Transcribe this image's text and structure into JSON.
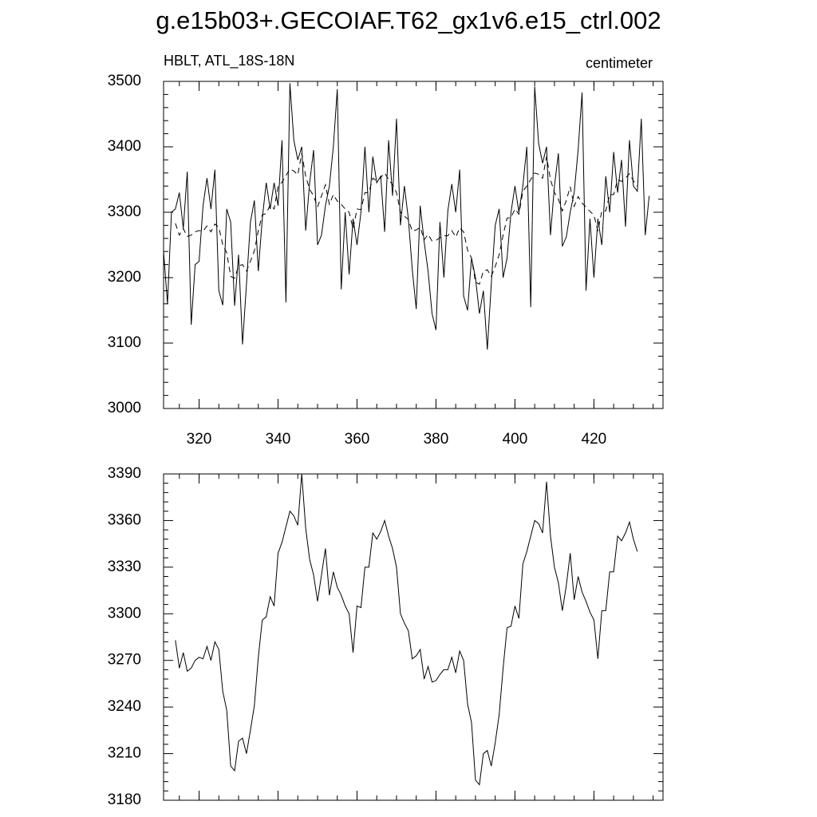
{
  "chart_data": [
    {
      "type": "line",
      "title": "g.e15b03+.GECOIAF.T62_gx1v6.e15_ctrl.002",
      "subtitle": "HBLT, ATL_18S-18N",
      "units": "centimeter",
      "xlim": [
        311,
        437.5
      ],
      "xticks": [
        320,
        340,
        360,
        380,
        400,
        420
      ],
      "ylim": [
        3000,
        3500
      ],
      "yticks": [
        3000,
        3100,
        3200,
        3300,
        3400,
        3500
      ],
      "series": [
        {
          "style": "solid",
          "color": "#000000",
          "x": [
            311,
            312,
            313,
            314,
            315,
            316,
            317,
            318,
            319,
            320,
            321,
            322,
            323,
            324,
            325,
            326,
            327,
            328,
            329,
            330,
            331,
            332,
            333,
            334,
            335,
            336,
            337,
            338,
            339,
            340,
            341,
            342,
            343,
            344,
            345,
            346,
            347,
            348,
            349,
            350,
            351,
            352,
            353,
            354,
            355,
            356,
            357,
            358,
            359,
            360,
            361,
            362,
            363,
            364,
            365,
            366,
            367,
            368,
            369,
            370,
            371,
            372,
            373,
            374,
            375,
            376,
            377,
            378,
            379,
            380,
            381,
            382,
            383,
            384,
            385,
            386,
            387,
            388,
            389,
            390,
            391,
            392,
            393,
            394,
            395,
            396,
            397,
            398,
            399,
            400,
            401,
            402,
            403,
            404,
            405,
            406,
            407,
            408,
            409,
            410,
            411,
            412,
            413,
            414,
            415,
            416,
            417,
            418,
            419,
            420,
            421,
            422,
            423,
            424,
            425,
            426,
            427,
            428,
            429,
            430,
            431,
            432,
            433,
            434
          ],
          "values": [
            3240,
            3160,
            3300,
            3305,
            3330,
            3275,
            3362,
            3128,
            3220,
            3225,
            3310,
            3352,
            3305,
            3365,
            3180,
            3158,
            3305,
            3285,
            3157,
            3235,
            3098,
            3190,
            3285,
            3318,
            3210,
            3290,
            3345,
            3305,
            3345,
            3310,
            3410,
            3162,
            3497,
            3410,
            3380,
            3400,
            3272,
            3345,
            3395,
            3250,
            3265,
            3310,
            3340,
            3400,
            3488,
            3182,
            3300,
            3205,
            3290,
            3250,
            3300,
            3400,
            3300,
            3385,
            3345,
            3355,
            3270,
            3410,
            3325,
            3443,
            3280,
            3340,
            3290,
            3212,
            3152,
            3310,
            3255,
            3210,
            3145,
            3120,
            3285,
            3200,
            3302,
            3343,
            3300,
            3365,
            3172,
            3150,
            3230,
            3200,
            3145,
            3180,
            3090,
            3190,
            3280,
            3305,
            3200,
            3230,
            3300,
            3340,
            3300,
            3340,
            3400,
            3155,
            3492,
            3405,
            3375,
            3400,
            3265,
            3340,
            3390,
            3248,
            3262,
            3300,
            3330,
            3395,
            3483,
            3180,
            3290,
            3200,
            3290,
            3250,
            3355,
            3300,
            3392,
            3330,
            3380,
            3278,
            3410,
            3340,
            3332,
            3443,
            3265,
            3325
          ]
        },
        {
          "style": "dashed",
          "color": "#000000",
          "x": [
            314,
            315,
            316,
            317,
            318,
            319,
            320,
            321,
            322,
            323,
            324,
            325,
            326,
            327,
            328,
            329,
            330,
            331,
            332,
            333,
            334,
            335,
            336,
            337,
            338,
            339,
            340,
            341,
            342,
            343,
            344,
            345,
            346,
            347,
            348,
            349,
            350,
            351,
            352,
            353,
            354,
            355,
            356,
            357,
            358,
            359,
            360,
            361,
            362,
            363,
            364,
            365,
            366,
            367,
            368,
            369,
            370,
            371,
            372,
            373,
            374,
            375,
            376,
            377,
            378,
            379,
            380,
            381,
            382,
            383,
            384,
            385,
            386,
            387,
            388,
            389,
            390,
            391,
            392,
            393,
            394,
            395,
            396,
            397,
            398,
            399,
            400,
            401,
            402,
            403,
            404,
            405,
            406,
            407,
            408,
            409,
            410,
            411,
            412,
            413,
            414,
            415,
            416,
            417,
            418,
            419,
            420,
            421,
            422,
            423,
            424,
            425,
            426,
            427,
            428,
            429,
            430,
            431
          ],
          "values": [
            3283,
            3265,
            3275,
            3263,
            3265,
            3270,
            3272,
            3271,
            3279,
            3270,
            3282,
            3277,
            3250,
            3238,
            3202,
            3199,
            3218,
            3220,
            3210,
            3225,
            3241,
            3272,
            3296,
            3298,
            3311,
            3305,
            3339,
            3346,
            3356,
            3366,
            3363,
            3357,
            3390,
            3355,
            3335,
            3325,
            3308,
            3325,
            3342,
            3312,
            3327,
            3317,
            3312,
            3305,
            3300,
            3275,
            3305,
            3304,
            3330,
            3330,
            3352,
            3348,
            3353,
            3360,
            3350,
            3342,
            3330,
            3300,
            3294,
            3289,
            3271,
            3273,
            3277,
            3258,
            3266,
            3256,
            3257,
            3261,
            3264,
            3264,
            3272,
            3262,
            3276,
            3270,
            3242,
            3230,
            3193,
            3190,
            3210,
            3212,
            3202,
            3217,
            3235,
            3265,
            3291,
            3292,
            3305,
            3297,
            3332,
            3340,
            3350,
            3360,
            3358,
            3352,
            3385,
            3350,
            3330,
            3320,
            3302,
            3318,
            3339,
            3309,
            3324,
            3314,
            3308,
            3301,
            3296,
            3271,
            3302,
            3302,
            3327,
            3327,
            3350,
            3347,
            3352,
            3359,
            3348,
            3340
          ]
        }
      ]
    },
    {
      "type": "line",
      "xlim": [
        311,
        437.5
      ],
      "xticks": [
        320,
        340,
        360,
        380,
        400,
        420
      ],
      "ylim": [
        3180,
        3390
      ],
      "yticks": [
        3180,
        3210,
        3240,
        3270,
        3300,
        3330,
        3360,
        3390
      ],
      "series": [
        {
          "style": "solid",
          "color": "#000000",
          "x": [
            314,
            315,
            316,
            317,
            318,
            319,
            320,
            321,
            322,
            323,
            324,
            325,
            326,
            327,
            328,
            329,
            330,
            331,
            332,
            333,
            334,
            335,
            336,
            337,
            338,
            339,
            340,
            341,
            342,
            343,
            344,
            345,
            346,
            347,
            348,
            349,
            350,
            351,
            352,
            353,
            354,
            355,
            356,
            357,
            358,
            359,
            360,
            361,
            362,
            363,
            364,
            365,
            366,
            367,
            368,
            369,
            370,
            371,
            372,
            373,
            374,
            375,
            376,
            377,
            378,
            379,
            380,
            381,
            382,
            383,
            384,
            385,
            386,
            387,
            388,
            389,
            390,
            391,
            392,
            393,
            394,
            395,
            396,
            397,
            398,
            399,
            400,
            401,
            402,
            403,
            404,
            405,
            406,
            407,
            408,
            409,
            410,
            411,
            412,
            413,
            414,
            415,
            416,
            417,
            418,
            419,
            420,
            421,
            422,
            423,
            424,
            425,
            426,
            427,
            428,
            429,
            430,
            431
          ],
          "values": [
            3283,
            3265,
            3275,
            3263,
            3265,
            3270,
            3272,
            3271,
            3279,
            3270,
            3282,
            3277,
            3250,
            3238,
            3202,
            3199,
            3218,
            3220,
            3210,
            3225,
            3241,
            3272,
            3296,
            3298,
            3311,
            3305,
            3339,
            3346,
            3356,
            3366,
            3363,
            3357,
            3390,
            3355,
            3335,
            3325,
            3308,
            3325,
            3342,
            3312,
            3327,
            3317,
            3312,
            3305,
            3300,
            3275,
            3305,
            3304,
            3330,
            3330,
            3352,
            3348,
            3353,
            3360,
            3350,
            3342,
            3330,
            3300,
            3294,
            3289,
            3271,
            3273,
            3277,
            3258,
            3266,
            3256,
            3257,
            3261,
            3264,
            3264,
            3272,
            3262,
            3276,
            3270,
            3242,
            3230,
            3193,
            3190,
            3210,
            3212,
            3202,
            3217,
            3235,
            3265,
            3291,
            3292,
            3305,
            3297,
            3332,
            3340,
            3350,
            3360,
            3358,
            3352,
            3385,
            3350,
            3330,
            3320,
            3302,
            3318,
            3339,
            3309,
            3324,
            3314,
            3308,
            3301,
            3296,
            3271,
            3302,
            3302,
            3327,
            3327,
            3350,
            3347,
            3352,
            3359,
            3348,
            3340
          ]
        }
      ]
    }
  ]
}
